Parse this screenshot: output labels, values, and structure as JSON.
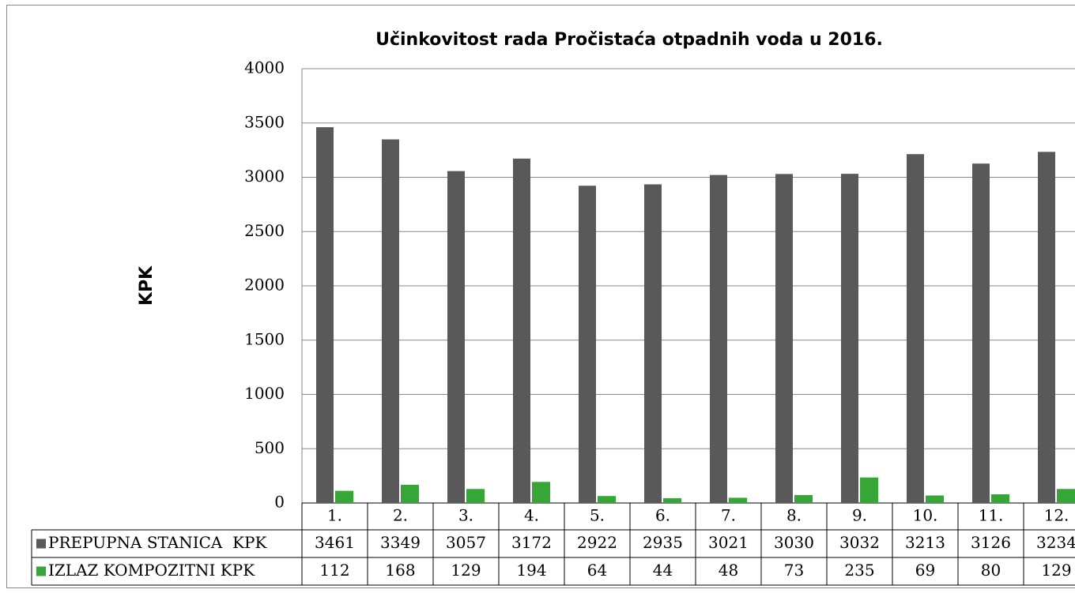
{
  "chart_data": {
    "type": "bar",
    "title": "Učinkovitost rada Pročistaća otpadnih voda u 2016.",
    "ylabel": "KPK",
    "categories": [
      "1.",
      "2.",
      "3.",
      "4.",
      "5.",
      "6.",
      "7.",
      "8.",
      "9.",
      "10.",
      "11.",
      "12."
    ],
    "series": [
      {
        "name": "PREPUPNA STANICA  KPK",
        "color": "#595959",
        "values": [
          3461,
          3349,
          3057,
          3172,
          2922,
          2935,
          3021,
          3030,
          3032,
          3213,
          3126,
          3234
        ]
      },
      {
        "name": "IZLAZ KOMPOZITNI KPK",
        "color": "#36a636",
        "values": [
          112,
          168,
          129,
          194,
          64,
          44,
          48,
          73,
          235,
          69,
          80,
          129
        ]
      }
    ],
    "ylim": [
      0,
      4000
    ],
    "yticks": [
      0,
      500,
      1000,
      1500,
      2000,
      2500,
      3000,
      3500,
      4000
    ],
    "grid": true
  }
}
